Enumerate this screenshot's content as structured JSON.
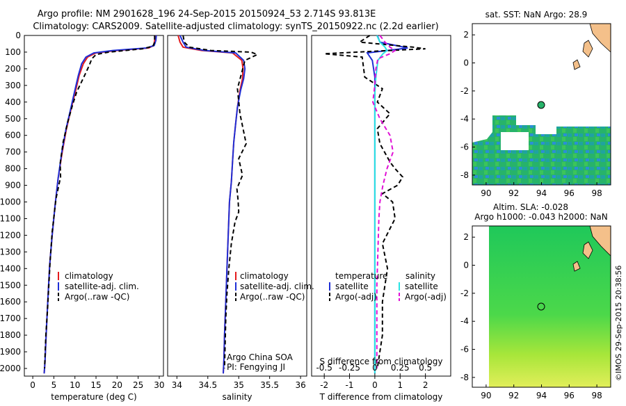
{
  "header": {
    "line1": "Argo profile: NM 2901628_196 24-Sep-2015 20150924_53 2.714S 93.813E",
    "line2": "Climatology: CARS2009. Satellite-adjusted climatology: synTS_20150922.nc (2.2d earlier)"
  },
  "colors": {
    "climatology": "#e41a1c",
    "satellite_adj": "#1f2fd6",
    "argo": "#000000",
    "sat_salinity": "#29e3e3",
    "argo_salinity": "#e011d6",
    "land": "#f4c08a"
  },
  "depth_ticks": [
    "0",
    "100",
    "200",
    "300",
    "400",
    "500",
    "600",
    "700",
    "800",
    "900",
    "1000",
    "1100",
    "1200",
    "1300",
    "1400",
    "1500",
    "1600",
    "1700",
    "1800",
    "1900",
    "2000"
  ],
  "temp_ticks": [
    "0",
    "5",
    "10",
    "15",
    "20",
    "25",
    "30"
  ],
  "sal_ticks": [
    "34",
    "34.5",
    "35",
    "35.5",
    "36"
  ],
  "diff_t_ticks": [
    "-2",
    "-1",
    "0",
    "1",
    "2"
  ],
  "diff_s_ticks": [
    "-0.5",
    "-0.25",
    "0",
    "0.25",
    "0.5"
  ],
  "map_x_ticks": [
    "90",
    "92",
    "94",
    "96",
    "98"
  ],
  "map_y_ticks": [
    "2",
    "0",
    "-2",
    "-4",
    "-6",
    "-8"
  ],
  "labels": {
    "temp_x": "temperature (deg C)",
    "sal_x": "salinity",
    "diff_t_x": "T difference from climatology",
    "diff_s_x": "S difference from climatology",
    "legend_clim": "climatology",
    "legend_sat": "satellite-adj. clim.",
    "legend_argo": "Argo(..raw -QC)",
    "diff_temp_header": "temperature",
    "diff_sal_header": "salinity",
    "diff_sat": "satellite",
    "diff_argo": "Argo(-adj)",
    "diff_sat2": "satellite",
    "diff_argo2": "Argo(-adj)",
    "inst1": "Argo China SOA",
    "inst2": "PI: Fengying JI",
    "sst_title": "sat. SST: NaN Argo: 28.9",
    "sla_title1": "Altim. SLA: -0.028",
    "sla_title2": "Argo h1000: -0.043 h2000: NaN",
    "stamp": "©IMOS 29-Sep-2015 20:38:56"
  },
  "chart_data": [
    {
      "type": "line",
      "xlabel": "temperature (deg C)",
      "ylabel": "",
      "xlim": [
        -2,
        31
      ],
      "ylim": [
        2050,
        0
      ],
      "series": [
        {
          "name": "climatology",
          "x": [
            29,
            28.9,
            28.7,
            27.5,
            20,
            15,
            13,
            12,
            11,
            10,
            9,
            8,
            7,
            6,
            5.3,
            4.6,
            4,
            3.7,
            3.4,
            3.1,
            2.9,
            2.7
          ],
          "y": [
            0,
            30,
            60,
            75,
            90,
            105,
            130,
            170,
            240,
            350,
            450,
            560,
            700,
            860,
            1020,
            1200,
            1380,
            1530,
            1680,
            1840,
            1960,
            2030
          ]
        },
        {
          "name": "satellite-adj. clim.",
          "x": [
            29.3,
            29.2,
            28.8,
            27,
            19,
            14.5,
            12.6,
            11.6,
            10.8,
            9.8,
            8.9,
            7.9,
            6.9,
            6,
            5.3,
            4.6,
            4,
            3.7,
            3.4,
            3.1,
            2.9,
            2.7
          ],
          "y": [
            0,
            30,
            60,
            75,
            90,
            105,
            130,
            170,
            240,
            350,
            450,
            560,
            700,
            860,
            1020,
            1200,
            1380,
            1530,
            1680,
            1840,
            1960,
            2030
          ]
        },
        {
          "name": "Argo(..raw -QC)",
          "x": [
            28.9,
            28.9,
            28.5,
            26,
            24,
            18,
            15,
            14,
            13.4,
            12.1,
            10.4,
            9.4,
            8.3,
            7.2,
            6.5,
            6.6,
            5.5,
            4.6,
            4.1,
            3.8,
            3.5,
            3.1,
            2.9,
            2.8
          ],
          "y": [
            0,
            40,
            65,
            80,
            85,
            100,
            115,
            140,
            180,
            250,
            340,
            420,
            520,
            640,
            770,
            850,
            980,
            1180,
            1360,
            1500,
            1650,
            1800,
            1930,
            2000
          ]
        }
      ]
    },
    {
      "type": "line",
      "xlabel": "salinity",
      "ylabel": "",
      "xlim": [
        33.85,
        36.1
      ],
      "ylim": [
        2050,
        0
      ],
      "series": [
        {
          "name": "climatology",
          "x": [
            34.02,
            34.05,
            34.1,
            34.4,
            34.9,
            35.05,
            35.07,
            35.06,
            35.02,
            34.98,
            34.95,
            34.92,
            34.9,
            34.88,
            34.85,
            34.83,
            34.81,
            34.79,
            34.77,
            34.76,
            34.75
          ],
          "y": [
            0,
            40,
            70,
            90,
            105,
            150,
            200,
            260,
            330,
            430,
            530,
            640,
            760,
            880,
            1000,
            1200,
            1400,
            1600,
            1800,
            1950,
            2030
          ]
        },
        {
          "name": "satellite-adj. clim.",
          "x": [
            34.05,
            34.1,
            34.15,
            34.45,
            34.95,
            35.08,
            35.1,
            35.08,
            35.03,
            34.98,
            34.95,
            34.92,
            34.9,
            34.88,
            34.85,
            34.83,
            34.81,
            34.79,
            34.77,
            34.76,
            34.75
          ],
          "y": [
            0,
            40,
            70,
            90,
            105,
            150,
            200,
            260,
            330,
            430,
            530,
            640,
            760,
            880,
            1000,
            1200,
            1400,
            1600,
            1800,
            1950,
            2030
          ]
        },
        {
          "name": "Argo(..raw -QC)",
          "x": [
            34.1,
            34.12,
            34.2,
            34.55,
            35.2,
            35.3,
            35.1,
            35.05,
            34.98,
            35.02,
            35.12,
            35,
            35.06,
            34.97,
            34.99,
            35,
            34.94,
            34.88,
            34.84,
            34.81,
            34.79,
            34.78,
            34.77
          ],
          "y": [
            0,
            40,
            70,
            90,
            100,
            115,
            150,
            220,
            320,
            470,
            650,
            740,
            840,
            920,
            990,
            1060,
            1120,
            1250,
            1400,
            1550,
            1700,
            1850,
            2000
          ]
        }
      ]
    },
    {
      "type": "line",
      "xlabel": "T difference from climatology",
      "ylabel": "",
      "xlim": [
        -2.5,
        3
      ],
      "ylim": [
        2050,
        0
      ],
      "series": [
        {
          "name": "temperature satellite",
          "x": [
            0.1,
            0.2,
            1.3,
            0.5,
            -0.3,
            -0.1,
            0,
            0,
            0,
            0,
            0,
            0,
            0,
            0,
            0,
            0,
            0,
            0,
            0
          ],
          "y": [
            0,
            40,
            75,
            90,
            105,
            150,
            250,
            350,
            450,
            550,
            650,
            750,
            900,
            1100,
            1300,
            1500,
            1700,
            1900,
            2030
          ]
        },
        {
          "name": "temperature Argo(-adj)",
          "x": [
            -0.2,
            -0.6,
            1.5,
            2,
            0.6,
            -2,
            -0.5,
            -0.4,
            0.3,
            0.1,
            0.6,
            0.1,
            0.2,
            0.6,
            0.8,
            1.1,
            0.9,
            0.3,
            0.7,
            0.8,
            0.3,
            0.5,
            0.3,
            0.3,
            0.1
          ],
          "y": [
            0,
            40,
            70,
            80,
            90,
            110,
            130,
            250,
            320,
            400,
            470,
            560,
            650,
            760,
            800,
            850,
            900,
            950,
            1000,
            1100,
            1250,
            1400,
            1600,
            1800,
            2000
          ]
        },
        {
          "name": "salinity satellite",
          "x": [
            0.02,
            0.05,
            0.1,
            0.12,
            0.08,
            0.03,
            0.01,
            0,
            0,
            0,
            0,
            0,
            0,
            0,
            0,
            0,
            0,
            0
          ],
          "y": [
            0,
            40,
            70,
            90,
            110,
            150,
            250,
            350,
            450,
            550,
            650,
            750,
            900,
            1100,
            1300,
            1500,
            1700,
            2030
          ]
        },
        {
          "name": "salinity Argo(-adj)",
          "x": [
            0.05,
            0.1,
            0.15,
            0.2,
            0.15,
            0.03,
            0.01,
            0,
            -0.02,
            0.05,
            0.15,
            0.18,
            0.12,
            0.08,
            0.05,
            0.04,
            0.03,
            0.02,
            0.02,
            0.02
          ],
          "y": [
            0,
            40,
            70,
            90,
            110,
            140,
            200,
            300,
            400,
            500,
            600,
            700,
            800,
            900,
            1000,
            1100,
            1300,
            1500,
            1700,
            2000
          ]
        }
      ]
    }
  ]
}
